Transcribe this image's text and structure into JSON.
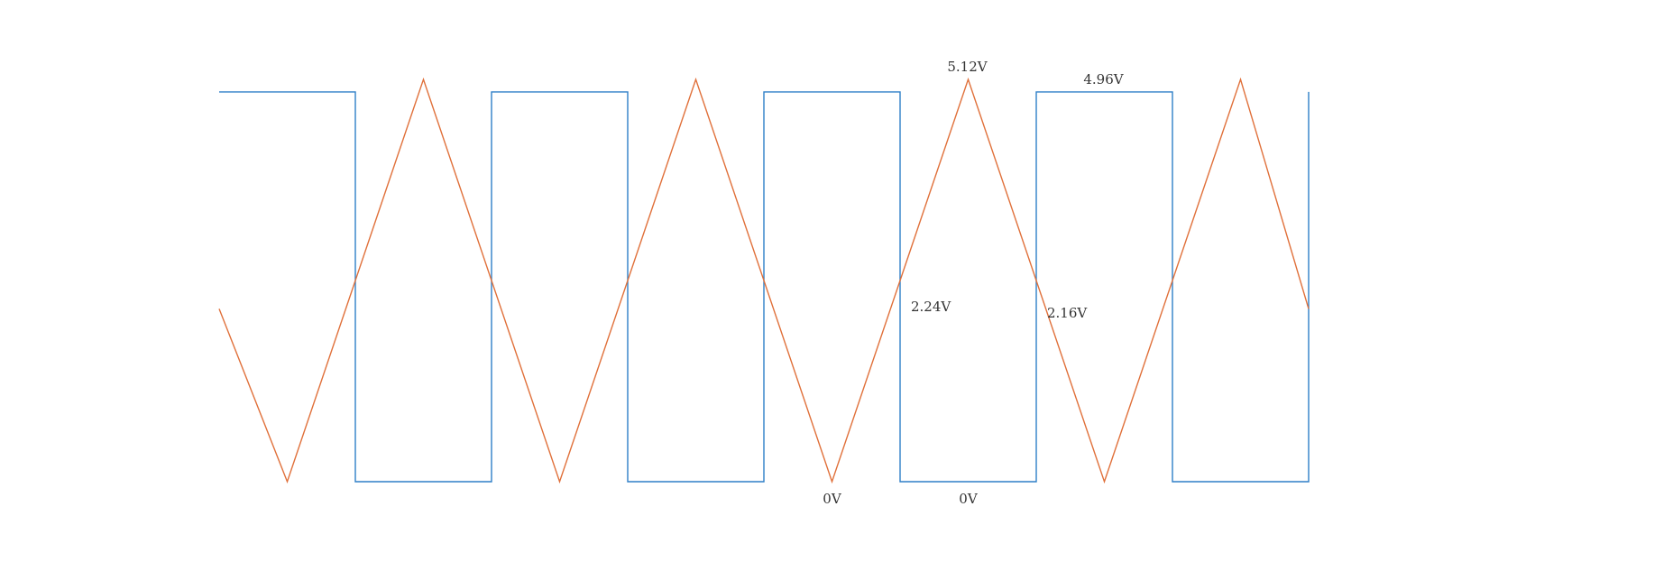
{
  "chart_data": {
    "type": "line",
    "title": "",
    "xlabel": "",
    "ylabel": "",
    "grid": false,
    "legend": "none",
    "xlim": [
      0,
      8
    ],
    "ylim": [
      -0.5,
      5.5
    ],
    "series": [
      {
        "color": "#2e7fc7",
        "style": "square",
        "x": [
          0,
          1,
          1,
          2,
          2,
          3,
          3,
          4,
          4,
          5,
          5,
          6,
          6,
          7,
          7,
          8,
          8
        ],
        "y": [
          4.96,
          4.96,
          0,
          0,
          4.96,
          4.96,
          0,
          0,
          4.96,
          4.96,
          0,
          0,
          4.96,
          4.96,
          0,
          0,
          4.96
        ]
      },
      {
        "color": "#e0703a",
        "style": "triangle",
        "x": [
          0,
          0.5,
          1.5,
          2.5,
          3.5,
          4.5,
          5.5,
          6.5,
          7.5,
          8
        ],
        "y": [
          2.2,
          0,
          5.12,
          0,
          5.12,
          0,
          5.12,
          0,
          5.12,
          2.2
        ]
      }
    ],
    "annotations": [
      {
        "text": "5.12V",
        "x": 5.5,
        "y": 5.12,
        "position": "above"
      },
      {
        "text": "4.96V",
        "x": 6.5,
        "y": 4.96,
        "position": "above"
      },
      {
        "text": "2.24V",
        "x": 5.0,
        "y": 2.24,
        "position": "right"
      },
      {
        "text": "2.16V",
        "x": 6.0,
        "y": 2.16,
        "position": "right"
      },
      {
        "text": "0V",
        "x": 4.5,
        "y": 0,
        "position": "below"
      },
      {
        "text": "0V",
        "x": 5.5,
        "y": 0,
        "position": "below"
      }
    ]
  }
}
